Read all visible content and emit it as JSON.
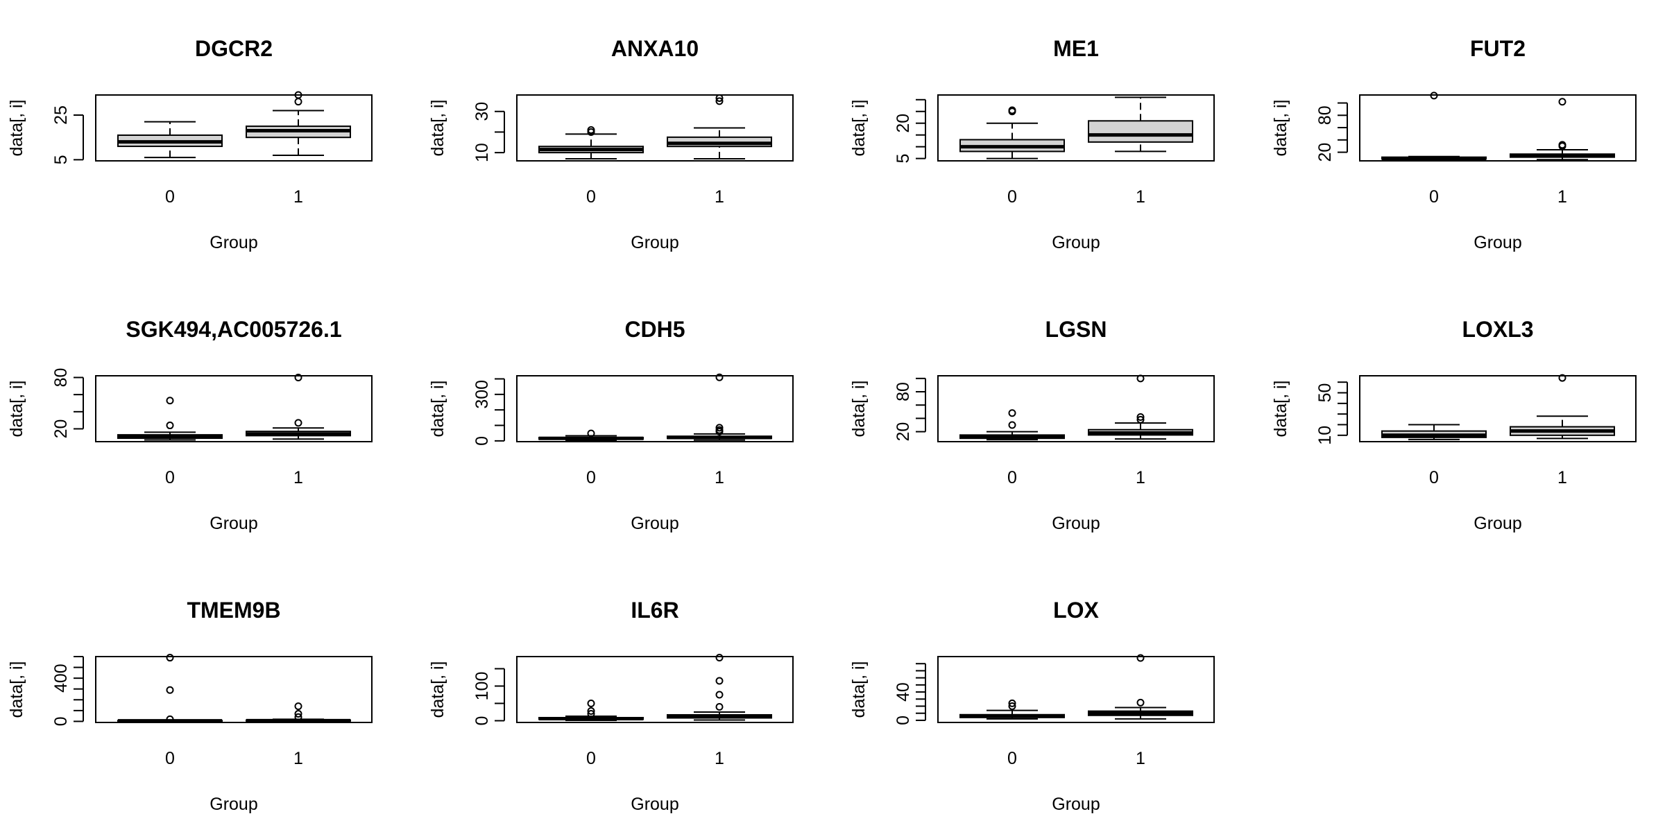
{
  "chart_data": [
    {
      "type": "box",
      "title": "DGCR2",
      "xlabel": "Group",
      "ylabel": "data[, i]",
      "ylim": [
        4.5,
        34
      ],
      "yticks": [
        5,
        25
      ],
      "ytick_labels": [
        "5",
        "25"
      ],
      "categories": [
        "0",
        "1"
      ],
      "boxes": [
        {
          "group": "0",
          "whisker_low": 6,
          "q1": 11,
          "median": 13,
          "q3": 16,
          "whisker_high": 22,
          "outliers": []
        },
        {
          "group": "1",
          "whisker_low": 7,
          "q1": 15,
          "median": 18,
          "q3": 20,
          "whisker_high": 27,
          "outliers": [
            31,
            34
          ]
        }
      ]
    },
    {
      "type": "box",
      "title": "ANXA10",
      "xlabel": "Group",
      "ylabel": "data[, i]",
      "ylim": [
        6,
        38
      ],
      "yticks": [
        10,
        20,
        30
      ],
      "ytick_labels": [
        "10",
        "",
        "30"
      ],
      "categories": [
        "0",
        "1"
      ],
      "boxes": [
        {
          "group": "0",
          "whisker_low": 7,
          "q1": 10,
          "median": 11.5,
          "q3": 13,
          "whisker_high": 19,
          "outliers": [
            20,
            21
          ]
        },
        {
          "group": "1",
          "whisker_low": 7,
          "q1": 13,
          "median": 14.5,
          "q3": 17.5,
          "whisker_high": 22,
          "outliers": [
            35,
            36.5
          ]
        }
      ]
    },
    {
      "type": "box",
      "title": "ME1",
      "xlabel": "Group",
      "ylabel": "data[, i]",
      "ylim": [
        4,
        32
      ],
      "yticks": [
        5,
        10,
        15,
        20,
        25,
        30
      ],
      "ytick_labels": [
        "5",
        "",
        "",
        "20",
        "",
        ""
      ],
      "categories": [
        "0",
        "1"
      ],
      "boxes": [
        {
          "group": "0",
          "whisker_low": 5,
          "q1": 8,
          "median": 10,
          "q3": 13,
          "whisker_high": 20,
          "outliers": [
            25,
            25.5
          ]
        },
        {
          "group": "1",
          "whisker_low": 8,
          "q1": 12,
          "median": 15,
          "q3": 21,
          "whisker_high": 31,
          "outliers": []
        }
      ]
    },
    {
      "type": "box",
      "title": "FUT2",
      "xlabel": "Group",
      "ylabel": "data[, i]",
      "ylim": [
        6,
        113
      ],
      "yticks": [
        20,
        40,
        60,
        80,
        100
      ],
      "ytick_labels": [
        "20",
        "",
        "",
        "80",
        ""
      ],
      "categories": [
        "0",
        "1"
      ],
      "boxes": [
        {
          "group": "0",
          "whisker_low": 7,
          "q1": 9,
          "median": 10,
          "q3": 12,
          "whisker_high": 13,
          "outliers": [
            112
          ]
        },
        {
          "group": "1",
          "whisker_low": 8,
          "q1": 12,
          "median": 14,
          "q3": 17,
          "whisker_high": 24,
          "outliers": [
            30,
            32,
            102
          ]
        }
      ]
    },
    {
      "type": "box",
      "title": "SGK494,AC005726.1",
      "xlabel": "Group",
      "ylabel": "data[, i]",
      "ylim": [
        5,
        82
      ],
      "yticks": [
        20,
        40,
        60,
        80
      ],
      "ytick_labels": [
        "20",
        "",
        "",
        "80"
      ],
      "categories": [
        "0",
        "1"
      ],
      "boxes": [
        {
          "group": "0",
          "whisker_low": 7,
          "q1": 9,
          "median": 11,
          "q3": 13,
          "whisker_high": 16,
          "outliers": [
            24,
            53
          ]
        },
        {
          "group": "1",
          "whisker_low": 8,
          "q1": 12,
          "median": 14,
          "q3": 17,
          "whisker_high": 21,
          "outliers": [
            27,
            80
          ]
        }
      ]
    },
    {
      "type": "box",
      "title": "CDH5",
      "xlabel": "Group",
      "ylabel": "data[, i]",
      "ylim": [
        -5,
        420
      ],
      "yticks": [
        0,
        100,
        200,
        300,
        400
      ],
      "ytick_labels": [
        "0",
        "",
        "",
        "300",
        ""
      ],
      "categories": [
        "0",
        "1"
      ],
      "boxes": [
        {
          "group": "0",
          "whisker_low": 3,
          "q1": 11,
          "median": 16,
          "q3": 22,
          "whisker_high": 33,
          "outliers": [
            48
          ]
        },
        {
          "group": "1",
          "whisker_low": 5,
          "q1": 16,
          "median": 22,
          "q3": 30,
          "whisker_high": 45,
          "outliers": [
            60,
            70,
            85,
            410
          ]
        }
      ]
    },
    {
      "type": "box",
      "title": "LGSN",
      "xlabel": "Group",
      "ylabel": "data[, i]",
      "ylim": [
        5,
        104
      ],
      "yticks": [
        20,
        40,
        60,
        80,
        100
      ],
      "ytick_labels": [
        "20",
        "",
        "",
        "80",
        ""
      ],
      "categories": [
        "0",
        "1"
      ],
      "boxes": [
        {
          "group": "0",
          "whisker_low": 8,
          "q1": 10,
          "median": 12,
          "q3": 15,
          "whisker_high": 20,
          "outliers": [
            30,
            48
          ]
        },
        {
          "group": "1",
          "whisker_low": 9,
          "q1": 15,
          "median": 18,
          "q3": 23,
          "whisker_high": 33,
          "outliers": [
            38,
            42,
            100
          ]
        }
      ]
    },
    {
      "type": "box",
      "title": "LOXL3",
      "xlabel": "Group",
      "ylabel": "data[, i]",
      "ylim": [
        4,
        66
      ],
      "yticks": [
        10,
        20,
        30,
        40,
        50,
        60
      ],
      "ytick_labels": [
        "10",
        "",
        "",
        "",
        "50",
        ""
      ],
      "categories": [
        "0",
        "1"
      ],
      "boxes": [
        {
          "group": "0",
          "whisker_low": 6,
          "q1": 8,
          "median": 10,
          "q3": 14,
          "whisker_high": 20,
          "outliers": []
        },
        {
          "group": "1",
          "whisker_low": 7,
          "q1": 10,
          "median": 14,
          "q3": 18,
          "whisker_high": 28,
          "outliers": [
            64
          ]
        }
      ]
    },
    {
      "type": "box",
      "title": "TMEM9B",
      "xlabel": "Group",
      "ylabel": "data[, i]",
      "ylim": [
        -10,
        600
      ],
      "yticks": [
        0,
        100,
        200,
        300,
        400,
        500,
        600
      ],
      "ytick_labels": [
        "0",
        "",
        "",
        "",
        "400",
        "",
        ""
      ],
      "categories": [
        "0",
        "1"
      ],
      "boxes": [
        {
          "group": "0",
          "whisker_low": 1,
          "q1": 3,
          "median": 5,
          "q3": 8,
          "whisker_high": 12,
          "outliers": [
            20,
            290,
            590
          ]
        },
        {
          "group": "1",
          "whisker_low": 1,
          "q1": 4,
          "median": 7,
          "q3": 12,
          "whisker_high": 20,
          "outliers": [
            40,
            70,
            140
          ]
        }
      ]
    },
    {
      "type": "box",
      "title": "IL6R",
      "xlabel": "Group",
      "ylabel": "data[, i]",
      "ylim": [
        -5,
        185
      ],
      "yticks": [
        0,
        50,
        100,
        150
      ],
      "ytick_labels": [
        "0",
        "",
        "100",
        ""
      ],
      "categories": [
        "0",
        "1"
      ],
      "boxes": [
        {
          "group": "0",
          "whisker_low": 1,
          "q1": 4,
          "median": 6,
          "q3": 9,
          "whisker_high": 13,
          "outliers": [
            20,
            28,
            50
          ]
        },
        {
          "group": "1",
          "whisker_low": 2,
          "q1": 8,
          "median": 12,
          "q3": 17,
          "whisker_high": 25,
          "outliers": [
            40,
            75,
            115,
            182
          ]
        }
      ]
    },
    {
      "type": "box",
      "title": "LOX",
      "xlabel": "Group",
      "ylabel": "data[, i]",
      "ylim": [
        -3,
        90
      ],
      "yticks": [
        0,
        10,
        20,
        30,
        40,
        50,
        60,
        70,
        80
      ],
      "ytick_labels": [
        "0",
        "",
        "",
        "",
        "40",
        "",
        "",
        "",
        ""
      ],
      "categories": [
        "0",
        "1"
      ],
      "boxes": [
        {
          "group": "0",
          "whisker_low": 2,
          "q1": 4,
          "median": 6,
          "q3": 8,
          "whisker_high": 14,
          "outliers": [
            20,
            24
          ]
        },
        {
          "group": "1",
          "whisker_low": 2,
          "q1": 7,
          "median": 10,
          "q3": 13,
          "whisker_high": 18,
          "outliers": [
            25,
            88
          ]
        }
      ]
    }
  ],
  "colors": {
    "box_fill": "#d3d3d3",
    "line": "#000000",
    "background": "#ffffff"
  }
}
